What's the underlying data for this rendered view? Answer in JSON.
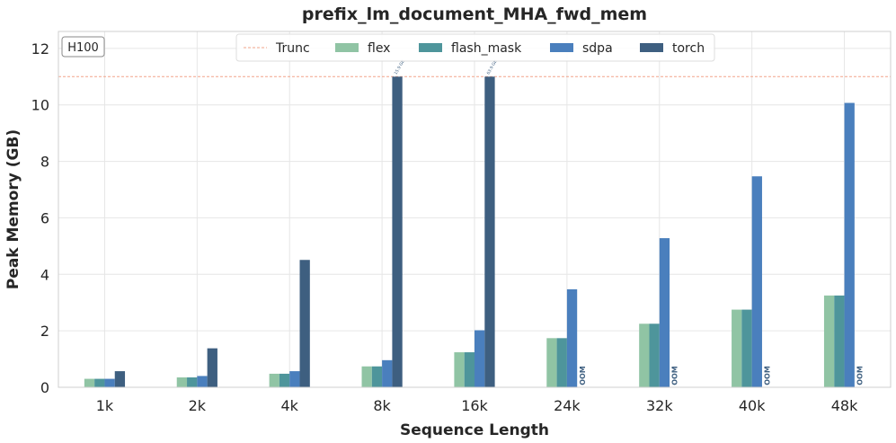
{
  "chart_data": {
    "type": "bar",
    "title": "prefix_lm_document_MHA_fwd_mem",
    "xlabel": "Sequence Length",
    "ylabel": "Peak Memory (GB)",
    "badge": "H100",
    "categories": [
      "1k",
      "2k",
      "4k",
      "8k",
      "16k",
      "24k",
      "32k",
      "40k",
      "48k"
    ],
    "ylim": [
      0,
      12.6
    ],
    "yticks": [
      0,
      2,
      4,
      6,
      8,
      10,
      12
    ],
    "grid": true,
    "legend_placement": "top-center",
    "trunc": {
      "name": "Trunc",
      "value": 11.0,
      "color": "#f2a48a"
    },
    "series": [
      {
        "name": "flex",
        "color": "#90c4a4",
        "values": [
          0.3,
          0.35,
          0.48,
          0.74,
          1.24,
          1.74,
          2.25,
          2.75,
          3.25
        ]
      },
      {
        "name": "flash_mask",
        "color": "#4e959b",
        "values": [
          0.3,
          0.35,
          0.48,
          0.74,
          1.24,
          1.74,
          2.25,
          2.75,
          3.25
        ]
      },
      {
        "name": "sdpa",
        "color": "#4a7fbd",
        "values": [
          0.3,
          0.4,
          0.57,
          0.96,
          2.02,
          3.47,
          5.28,
          7.47,
          10.07
        ]
      },
      {
        "name": "torch",
        "color": "#3e5f80",
        "values": [
          0.57,
          1.38,
          4.51,
          11.0,
          11.0,
          null,
          null,
          null,
          null
        ]
      }
    ],
    "truncated_labels": [
      {
        "category": "8k",
        "series": "torch",
        "text": "15.9 GB"
      },
      {
        "category": "16k",
        "series": "torch",
        "text": "63.9 GB"
      }
    ],
    "oom_label": "OOM"
  }
}
